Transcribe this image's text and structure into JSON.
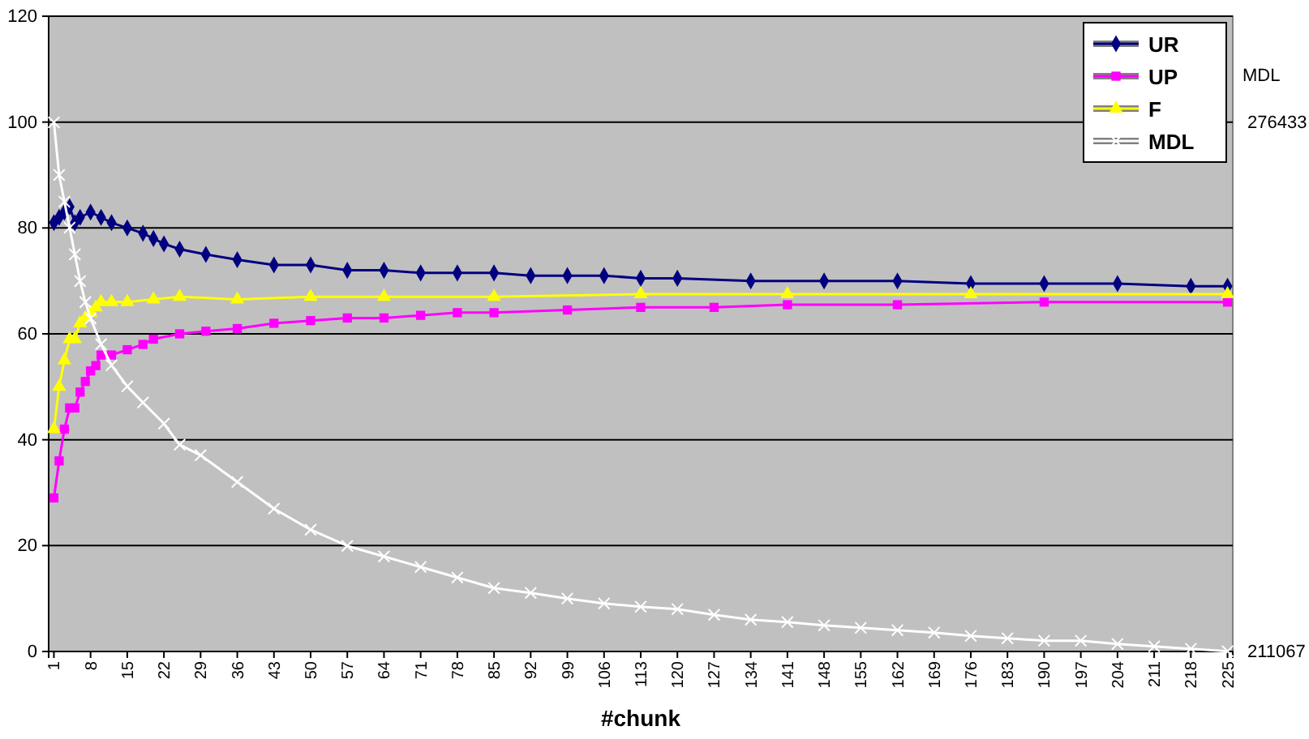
{
  "chart_data": {
    "type": "line",
    "xlabel": "#chunk",
    "y2label": "MDL",
    "xlim": [
      0,
      226
    ],
    "xticks": [
      1,
      8,
      15,
      22,
      29,
      36,
      43,
      50,
      57,
      64,
      71,
      78,
      85,
      92,
      99,
      106,
      113,
      120,
      127,
      134,
      141,
      148,
      155,
      162,
      169,
      176,
      183,
      190,
      197,
      204,
      211,
      218,
      225
    ],
    "ylim": [
      0,
      120
    ],
    "yticks": [
      0,
      20,
      40,
      60,
      80,
      100,
      120
    ],
    "y2lim": [
      211067,
      289506
    ],
    "y2ticks": [
      211067,
      276433
    ],
    "grid": "y",
    "legend": "top right",
    "series": [
      {
        "name": "UR",
        "color": "#000080",
        "marker": "diamond",
        "x": [
          1,
          2,
          3,
          4,
          5,
          6,
          8,
          10,
          12,
          15,
          18,
          20,
          22,
          25,
          30,
          36,
          43,
          50,
          57,
          64,
          71,
          78,
          85,
          92,
          99,
          106,
          113,
          120,
          134,
          148,
          162,
          176,
          190,
          204,
          218,
          225
        ],
        "values": [
          81,
          82,
          83,
          84,
          81,
          82,
          83,
          82,
          81,
          80,
          79,
          78,
          77,
          76,
          75,
          74,
          73,
          73,
          72,
          72,
          71.5,
          71.5,
          71.5,
          71,
          71,
          71,
          70.5,
          70.5,
          70,
          70,
          70,
          69.5,
          69.5,
          69.5,
          69,
          69
        ]
      },
      {
        "name": "UP",
        "color": "#ff00ff",
        "marker": "square",
        "x": [
          1,
          2,
          3,
          4,
          5,
          6,
          7,
          8,
          9,
          10,
          12,
          15,
          18,
          20,
          25,
          30,
          36,
          43,
          50,
          57,
          64,
          71,
          78,
          85,
          99,
          113,
          127,
          141,
          162,
          190,
          225
        ],
        "values": [
          29,
          36,
          42,
          46,
          46,
          49,
          51,
          53,
          54,
          56,
          56,
          57,
          58,
          59,
          60,
          60.5,
          61,
          62,
          62.5,
          63,
          63,
          63.5,
          64,
          64,
          64.5,
          65,
          65,
          65.5,
          65.5,
          66,
          66
        ]
      },
      {
        "name": "F",
        "color": "#ffff00",
        "marker": "triangle",
        "x": [
          1,
          2,
          3,
          4,
          5,
          6,
          7,
          8,
          9,
          10,
          12,
          15,
          20,
          25,
          36,
          50,
          64,
          85,
          113,
          141,
          176,
          225
        ],
        "values": [
          42,
          50,
          55,
          59,
          59,
          62,
          63,
          64,
          65,
          66,
          66,
          66,
          66.5,
          67,
          66.5,
          67,
          67,
          67,
          67.5,
          67.5,
          67.5,
          67.5
        ]
      },
      {
        "name": "MDL",
        "color": "#ffffff",
        "marker": "cross",
        "axis": "y2",
        "x": [
          1,
          2,
          3,
          4,
          5,
          6,
          7,
          8,
          10,
          12,
          15,
          18,
          22,
          25,
          29,
          36,
          43,
          50,
          57,
          64,
          71,
          78,
          85,
          92,
          99,
          106,
          113,
          120,
          127,
          134,
          141,
          148,
          155,
          162,
          169,
          176,
          183,
          190,
          197,
          204,
          211,
          218,
          225
        ],
        "values": [
          276400,
          269900,
          266600,
          263400,
          260100,
          256800,
          254200,
          252200,
          249000,
          246400,
          243800,
          241800,
          239200,
          236600,
          235300,
          232000,
          228700,
          226100,
          224100,
          222800,
          221500,
          220200,
          218900,
          218300,
          217600,
          217000,
          216600,
          216300,
          215600,
          215000,
          214700,
          214300,
          214000,
          213700,
          213400,
          213000,
          212700,
          212400,
          212400,
          212000,
          211700,
          211400,
          211100
        ]
      }
    ]
  }
}
